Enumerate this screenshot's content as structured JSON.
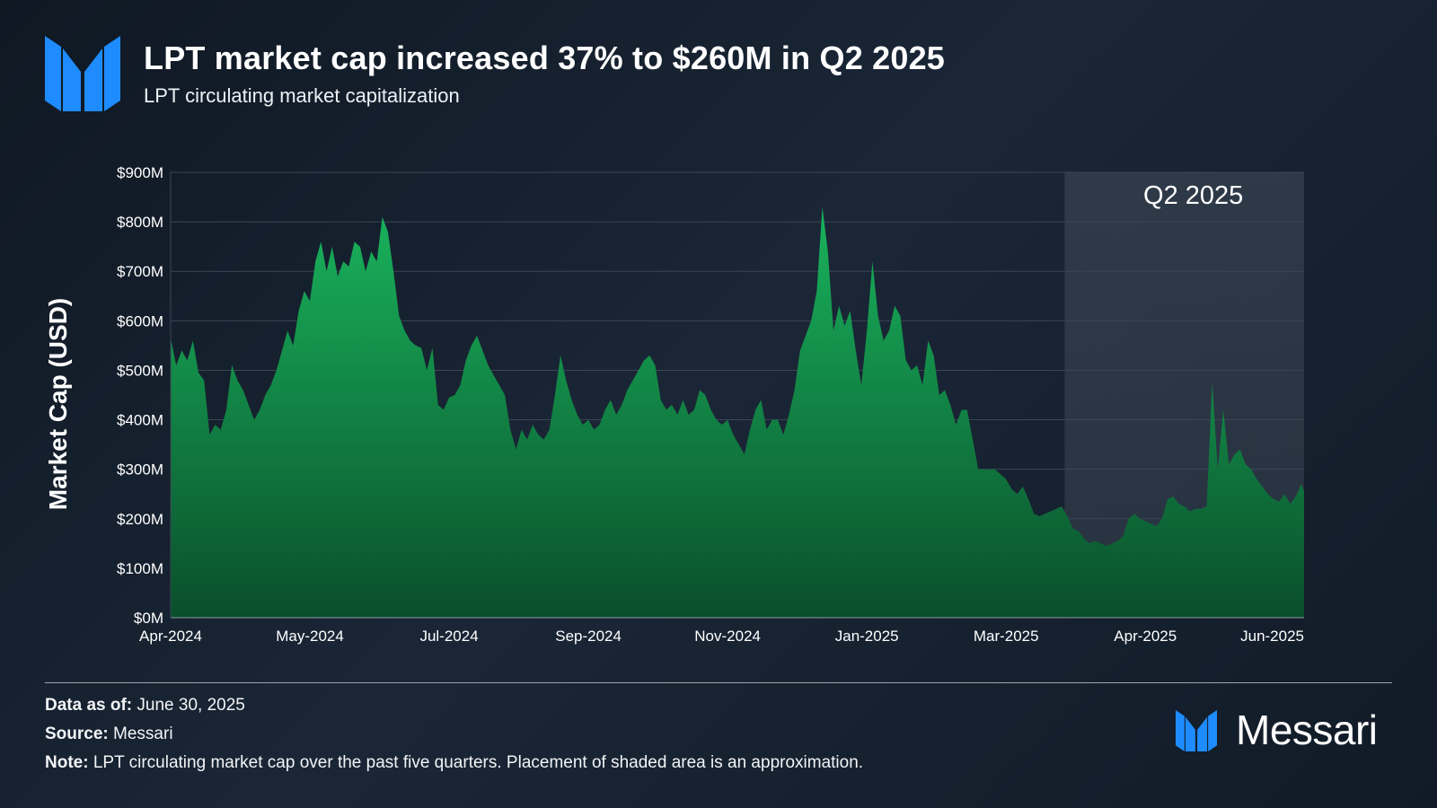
{
  "header": {
    "title": "LPT market cap increased 37% to $260M in Q2 2025",
    "subtitle": "LPT circulating market capitalization",
    "logo_icon": "messari-logo-icon"
  },
  "colors": {
    "background": "#141f2c",
    "area_top": "#19b35c",
    "area_bottom": "#0a4f2b",
    "shade": "#4a5563",
    "gridline": "#3a4654",
    "logo_blue": "#1e8cff"
  },
  "chart_data": {
    "type": "area",
    "title": "LPT circulating market capitalization",
    "xlabel": "",
    "ylabel": "Market Cap (USD)",
    "ylim": [
      0,
      900
    ],
    "y_unit": "millions USD",
    "y_ticks": [
      0,
      100,
      200,
      300,
      400,
      500,
      600,
      700,
      800,
      900
    ],
    "y_tick_labels": [
      "$0M",
      "$100M",
      "$200M",
      "$300M",
      "$400M",
      "$500M",
      "$600M",
      "$700M",
      "$800M",
      "$900M"
    ],
    "x_ticks": [
      0,
      1,
      2,
      3,
      4,
      5,
      6,
      7,
      8
    ],
    "x_tick_labels": [
      "Apr-2024",
      "May-2024",
      "Jul-2024",
      "Sep-2024",
      "Nov-2024",
      "Jan-2025",
      "Mar-2025",
      "Apr-2025",
      "Jun-2025"
    ],
    "xlim": [
      0,
      8.14
    ],
    "grid": true,
    "legend": "none",
    "shaded_region": {
      "label": "Q2 2025",
      "x_start": 6.42,
      "x_end": 8.14
    },
    "series": [
      {
        "name": "LPT Market Cap",
        "points": [
          [
            0.0,
            565
          ],
          [
            0.04,
            510
          ],
          [
            0.08,
            540
          ],
          [
            0.12,
            520
          ],
          [
            0.16,
            560
          ],
          [
            0.2,
            495
          ],
          [
            0.24,
            480
          ],
          [
            0.28,
            370
          ],
          [
            0.32,
            390
          ],
          [
            0.36,
            380
          ],
          [
            0.4,
            420
          ],
          [
            0.44,
            510
          ],
          [
            0.48,
            480
          ],
          [
            0.52,
            460
          ],
          [
            0.56,
            430
          ],
          [
            0.6,
            400
          ],
          [
            0.64,
            420
          ],
          [
            0.68,
            450
          ],
          [
            0.72,
            470
          ],
          [
            0.76,
            500
          ],
          [
            0.8,
            540
          ],
          [
            0.84,
            580
          ],
          [
            0.88,
            550
          ],
          [
            0.92,
            620
          ],
          [
            0.96,
            660
          ],
          [
            1.0,
            640
          ],
          [
            1.04,
            720
          ],
          [
            1.08,
            760
          ],
          [
            1.12,
            700
          ],
          [
            1.16,
            750
          ],
          [
            1.2,
            690
          ],
          [
            1.24,
            720
          ],
          [
            1.28,
            710
          ],
          [
            1.32,
            760
          ],
          [
            1.36,
            750
          ],
          [
            1.4,
            700
          ],
          [
            1.44,
            740
          ],
          [
            1.48,
            720
          ],
          [
            1.52,
            810
          ],
          [
            1.56,
            780
          ],
          [
            1.6,
            700
          ],
          [
            1.64,
            610
          ],
          [
            1.68,
            580
          ],
          [
            1.72,
            560
          ],
          [
            1.76,
            550
          ],
          [
            1.8,
            545
          ],
          [
            1.84,
            500
          ],
          [
            1.88,
            545
          ],
          [
            1.92,
            430
          ],
          [
            1.96,
            420
          ],
          [
            2.0,
            445
          ],
          [
            2.04,
            450
          ],
          [
            2.08,
            470
          ],
          [
            2.12,
            520
          ],
          [
            2.16,
            550
          ],
          [
            2.2,
            570
          ],
          [
            2.24,
            540
          ],
          [
            2.28,
            510
          ],
          [
            2.32,
            490
          ],
          [
            2.36,
            470
          ],
          [
            2.4,
            450
          ],
          [
            2.44,
            380
          ],
          [
            2.48,
            340
          ],
          [
            2.52,
            380
          ],
          [
            2.56,
            360
          ],
          [
            2.6,
            390
          ],
          [
            2.64,
            370
          ],
          [
            2.68,
            360
          ],
          [
            2.72,
            380
          ],
          [
            2.76,
            450
          ],
          [
            2.8,
            530
          ],
          [
            2.84,
            480
          ],
          [
            2.88,
            440
          ],
          [
            2.92,
            410
          ],
          [
            2.96,
            390
          ],
          [
            3.0,
            400
          ],
          [
            3.04,
            380
          ],
          [
            3.08,
            390
          ],
          [
            3.12,
            420
          ],
          [
            3.16,
            440
          ],
          [
            3.2,
            410
          ],
          [
            3.24,
            430
          ],
          [
            3.28,
            460
          ],
          [
            3.32,
            480
          ],
          [
            3.36,
            500
          ],
          [
            3.4,
            520
          ],
          [
            3.44,
            530
          ],
          [
            3.48,
            510
          ],
          [
            3.52,
            440
          ],
          [
            3.56,
            420
          ],
          [
            3.6,
            430
          ],
          [
            3.64,
            410
          ],
          [
            3.68,
            440
          ],
          [
            3.72,
            410
          ],
          [
            3.76,
            420
          ],
          [
            3.8,
            460
          ],
          [
            3.84,
            450
          ],
          [
            3.88,
            420
          ],
          [
            3.92,
            400
          ],
          [
            3.96,
            390
          ],
          [
            4.0,
            400
          ],
          [
            4.04,
            370
          ],
          [
            4.08,
            350
          ],
          [
            4.12,
            330
          ],
          [
            4.16,
            380
          ],
          [
            4.2,
            420
          ],
          [
            4.24,
            440
          ],
          [
            4.28,
            380
          ],
          [
            4.32,
            400
          ],
          [
            4.36,
            400
          ],
          [
            4.4,
            370
          ],
          [
            4.44,
            410
          ],
          [
            4.48,
            460
          ],
          [
            4.52,
            540
          ],
          [
            4.56,
            570
          ],
          [
            4.6,
            600
          ],
          [
            4.64,
            660
          ],
          [
            4.68,
            830
          ],
          [
            4.72,
            740
          ],
          [
            4.76,
            580
          ],
          [
            4.8,
            630
          ],
          [
            4.84,
            590
          ],
          [
            4.88,
            620
          ],
          [
            4.92,
            540
          ],
          [
            4.96,
            470
          ],
          [
            5.0,
            580
          ],
          [
            5.04,
            720
          ],
          [
            5.08,
            610
          ],
          [
            5.12,
            560
          ],
          [
            5.16,
            580
          ],
          [
            5.2,
            630
          ],
          [
            5.24,
            610
          ],
          [
            5.28,
            520
          ],
          [
            5.32,
            500
          ],
          [
            5.36,
            510
          ],
          [
            5.4,
            470
          ],
          [
            5.44,
            560
          ],
          [
            5.48,
            530
          ],
          [
            5.52,
            450
          ],
          [
            5.56,
            460
          ],
          [
            5.6,
            430
          ],
          [
            5.64,
            390
          ],
          [
            5.68,
            420
          ],
          [
            5.72,
            420
          ],
          [
            5.76,
            360
          ],
          [
            5.8,
            300
          ],
          [
            5.84,
            300
          ],
          [
            5.88,
            300
          ],
          [
            5.92,
            300
          ],
          [
            5.96,
            290
          ],
          [
            6.0,
            280
          ],
          [
            6.04,
            260
          ],
          [
            6.08,
            250
          ],
          [
            6.12,
            265
          ],
          [
            6.16,
            240
          ],
          [
            6.2,
            210
          ],
          [
            6.24,
            205
          ],
          [
            6.28,
            210
          ],
          [
            6.32,
            215
          ],
          [
            6.36,
            220
          ],
          [
            6.4,
            225
          ],
          [
            6.44,
            205
          ],
          [
            6.48,
            180
          ],
          [
            6.52,
            175
          ],
          [
            6.56,
            160
          ],
          [
            6.6,
            150
          ],
          [
            6.64,
            155
          ],
          [
            6.68,
            150
          ],
          [
            6.72,
            145
          ],
          [
            6.76,
            150
          ],
          [
            6.8,
            155
          ],
          [
            6.84,
            165
          ],
          [
            6.88,
            200
          ],
          [
            6.92,
            210
          ],
          [
            6.96,
            200
          ],
          [
            7.0,
            195
          ],
          [
            7.04,
            190
          ],
          [
            7.08,
            185
          ],
          [
            7.12,
            200
          ],
          [
            7.16,
            240
          ],
          [
            7.2,
            245
          ],
          [
            7.24,
            230
          ],
          [
            7.28,
            225
          ],
          [
            7.32,
            215
          ],
          [
            7.36,
            220
          ],
          [
            7.4,
            220
          ],
          [
            7.44,
            225
          ],
          [
            7.48,
            475
          ],
          [
            7.52,
            300
          ],
          [
            7.56,
            420
          ],
          [
            7.6,
            310
          ],
          [
            7.64,
            330
          ],
          [
            7.68,
            340
          ],
          [
            7.72,
            310
          ],
          [
            7.76,
            300
          ],
          [
            7.8,
            280
          ],
          [
            7.84,
            265
          ],
          [
            7.88,
            250
          ],
          [
            7.92,
            240
          ],
          [
            7.96,
            235
          ],
          [
            8.0,
            250
          ],
          [
            8.04,
            230
          ],
          [
            8.08,
            245
          ],
          [
            8.12,
            270
          ],
          [
            8.14,
            255
          ]
        ]
      }
    ]
  },
  "footer": {
    "data_as_of_label": "Data as of:",
    "data_as_of_value": "June 30, 2025",
    "source_label": "Source:",
    "source_value": "Messari",
    "note_label": "Note:",
    "note_value": "LPT circulating market cap over the past five quarters. Placement of shaded area is an approximation."
  },
  "brand": {
    "name": "Messari",
    "logo_icon": "messari-logo-icon"
  }
}
